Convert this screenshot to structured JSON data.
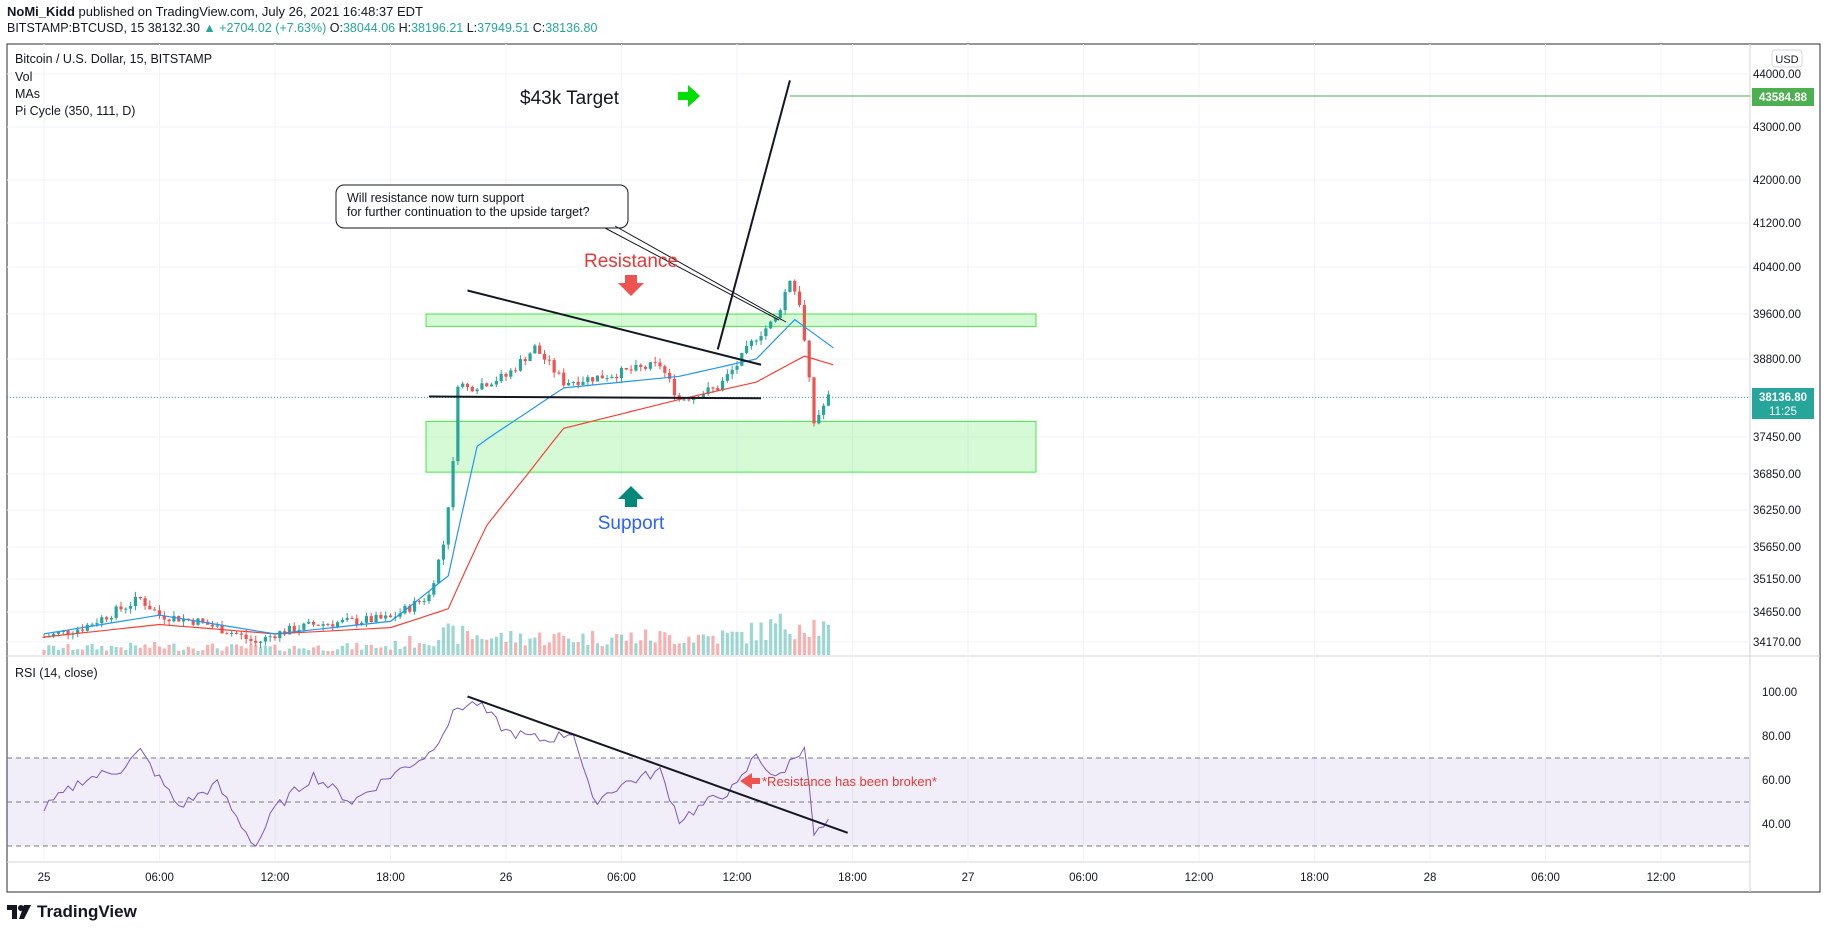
{
  "header": {
    "author": "NoMi_Kidd",
    "published": "published on TradingView.com, July 26, 2021 16:48:37 EDT",
    "symbol": "BITSTAMP:BTCUSD, 15",
    "last": "38132.30",
    "change": "▲ +2704.02 (+7.63%)",
    "o_label": "O:",
    "o": "38044.06",
    "h_label": "H:",
    "h": "38196.21",
    "l_label": "L:",
    "l": "37949.51",
    "c_label": "C:",
    "c": "38136.80"
  },
  "legend": {
    "title": "Bitcoin / U.S. Dollar, 15, BITSTAMP",
    "vol": "Vol",
    "mas": "MAs",
    "pi": "Pi Cycle (350, 111, D)",
    "rsi": "RSI (14, close)"
  },
  "currency_badge": "USD",
  "price_axis": [
    "44000.00",
    "43000.00",
    "42000.00",
    "41200.00",
    "40400.00",
    "39600.00",
    "38800.00",
    "37450.00",
    "36850.00",
    "36250.00",
    "35650.00",
    "35150.00",
    "34650.00",
    "34170.00"
  ],
  "price_badges": {
    "target": "43584.88",
    "current": "38136.80",
    "countdown": "11:25"
  },
  "rsi_axis": [
    "100.00",
    "80.00",
    "60.00",
    "40.00"
  ],
  "time_axis": [
    "25",
    "06:00",
    "12:00",
    "18:00",
    "26",
    "06:00",
    "12:00",
    "18:00",
    "27",
    "06:00",
    "12:00",
    "18:00",
    "28",
    "06:00",
    "12:00"
  ],
  "annotations": {
    "target": "$43k Target",
    "callout_line1": "Will resistance now turn support",
    "callout_line2": "for further continuation to the upside target?",
    "resistance": "Resistance",
    "support": "Support",
    "rsi_note": "*Resistance has been broken*"
  },
  "footer": {
    "brand": "TradingView"
  },
  "colors": {
    "up": "#26a69a",
    "down": "#ef5350",
    "ma_fast": "#2196f3",
    "ma_slow": "#f44336",
    "rsi": "#7e57c2",
    "zone": "#00e000",
    "target": "#4caf50",
    "resistance_text": "#e53935",
    "support_text": "#2962ff",
    "arrow_teal": "#00897b"
  },
  "chart_data": {
    "type": "candlestick",
    "symbol": "BITSTAMP:BTCUSD",
    "interval": "15",
    "price_path": [
      [
        "25 00:00",
        34250
      ],
      [
        "25 02:00",
        34400
      ],
      [
        "25 04:00",
        34700
      ],
      [
        "25 05:00",
        34850
      ],
      [
        "25 06:00",
        34600
      ],
      [
        "25 08:00",
        34500
      ],
      [
        "25 10:00",
        34300
      ],
      [
        "25 11:00",
        34150
      ],
      [
        "25 12:00",
        34300
      ],
      [
        "25 14:00",
        34450
      ],
      [
        "25 16:00",
        34500
      ],
      [
        "25 18:00",
        34550
      ],
      [
        "25 20:00",
        34900
      ],
      [
        "25 20:45",
        35700
      ],
      [
        "25 21:15",
        37000
      ],
      [
        "25 21:30",
        38400
      ],
      [
        "25 22:00",
        38300
      ],
      [
        "26 00:00",
        38500
      ],
      [
        "26 01:30",
        39000
      ],
      [
        "26 03:00",
        38400
      ],
      [
        "26 05:00",
        38500
      ],
      [
        "26 08:00",
        38700
      ],
      [
        "26 09:00",
        38100
      ],
      [
        "26 11:00",
        38300
      ],
      [
        "26 12:00",
        38700
      ],
      [
        "26 13:00",
        39200
      ],
      [
        "26 14:00",
        39500
      ],
      [
        "26 14:45",
        40200
      ],
      [
        "26 15:15",
        39800
      ],
      [
        "26 15:45",
        38400
      ],
      [
        "26 16:00",
        37700
      ],
      [
        "26 16:45",
        38136.8
      ]
    ],
    "ma_fast": [
      [
        "25 00:00",
        34300
      ],
      [
        "25 06:00",
        34600
      ],
      [
        "25 12:00",
        34300
      ],
      [
        "25 18:00",
        34500
      ],
      [
        "25 21:00",
        35200
      ],
      [
        "25 22:30",
        37300
      ],
      [
        "26 03:00",
        38300
      ],
      [
        "26 09:00",
        38500
      ],
      [
        "26 13:00",
        38800
      ],
      [
        "26 15:00",
        39500
      ],
      [
        "26 17:00",
        39000
      ]
    ],
    "ma_slow": [
      [
        "25 00:00",
        34250
      ],
      [
        "25 06:00",
        34450
      ],
      [
        "25 12:00",
        34300
      ],
      [
        "25 18:00",
        34400
      ],
      [
        "25 21:00",
        34700
      ],
      [
        "25 23:00",
        36000
      ],
      [
        "26 03:00",
        37600
      ],
      [
        "26 09:00",
        38100
      ],
      [
        "26 13:00",
        38400
      ],
      [
        "26 15:30",
        38850
      ],
      [
        "26 17:00",
        38700
      ]
    ],
    "volume_profile": [
      [
        "25 00:00",
        0.2
      ],
      [
        "25 06:00",
        0.25
      ],
      [
        "25 12:00",
        0.2
      ],
      [
        "25 18:00",
        0.25
      ],
      [
        "25 21:00",
        0.6
      ],
      [
        "26 00:00",
        0.5
      ],
      [
        "26 06:00",
        0.5
      ],
      [
        "26 12:00",
        0.55
      ],
      [
        "26 15:30",
        1.0
      ],
      [
        "26 16:45",
        0.7
      ]
    ],
    "rsi": [
      [
        "25 00:00",
        47
      ],
      [
        "25 02:00",
        60
      ],
      [
        "25 04:00",
        65
      ],
      [
        "25 05:00",
        73
      ],
      [
        "25 07:00",
        48
      ],
      [
        "25 09:00",
        58
      ],
      [
        "25 10:00",
        43
      ],
      [
        "25 11:00",
        30
      ],
      [
        "25 12:00",
        47
      ],
      [
        "25 14:00",
        62
      ],
      [
        "25 16:00",
        50
      ],
      [
        "25 18:00",
        62
      ],
      [
        "25 20:00",
        72
      ],
      [
        "25 21:30",
        93
      ],
      [
        "25 22:30",
        95
      ],
      [
        "26 00:00",
        82
      ],
      [
        "26 02:00",
        78
      ],
      [
        "26 03:30",
        82
      ],
      [
        "26 04:30",
        50
      ],
      [
        "26 06:00",
        58
      ],
      [
        "26 08:00",
        64
      ],
      [
        "26 09:00",
        42
      ],
      [
        "26 10:30",
        50
      ],
      [
        "26 12:00",
        57
      ],
      [
        "26 13:00",
        72
      ],
      [
        "26 14:00",
        60
      ],
      [
        "26 15:30",
        76
      ],
      [
        "26 16:00",
        35
      ],
      [
        "26 16:45",
        40
      ]
    ],
    "rsi_levels": {
      "upper": 70,
      "middle": 50,
      "lower": 30
    },
    "levels": {
      "target": 43584.88,
      "current": 38136.8,
      "resistance_zone": [
        39380,
        39600
      ],
      "support_zone": [
        36880,
        37720
      ]
    },
    "trendlines": [
      {
        "from": [
          "25 22:00",
          40000
        ],
        "to": [
          "26 13:15",
          38700
        ]
      },
      {
        "from": [
          "25 20:00",
          38150
        ],
        "to": [
          "26 13:15",
          38120
        ]
      },
      {
        "from": [
          "26 11:00",
          38970
        ],
        "to": [
          "26 14:45",
          43880
        ]
      }
    ],
    "rsi_trendline": {
      "from": [
        "25 22:00",
        98
      ],
      "to": [
        "26 17:45",
        36
      ]
    }
  }
}
